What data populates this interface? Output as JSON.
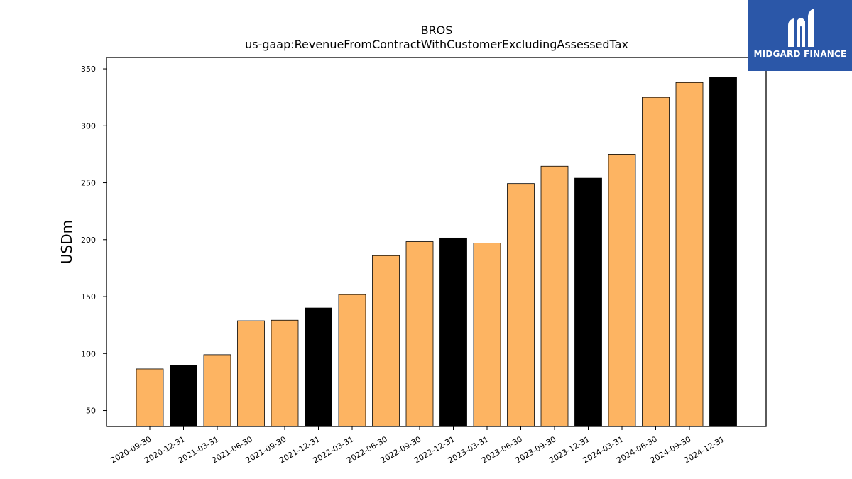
{
  "chart_data": {
    "type": "bar",
    "title": "BROS",
    "subtitle": "us-gaap:RevenueFromContractWithCustomerExcludingAssessedTax",
    "xlabel": "",
    "ylabel": "USDm",
    "ylim": [
      36,
      360
    ],
    "yticks": [
      50,
      100,
      150,
      200,
      250,
      300,
      350
    ],
    "grid": false,
    "categories": [
      "2020-09-30",
      "2020-12-31",
      "2021-03-31",
      "2021-06-30",
      "2021-09-30",
      "2021-12-31",
      "2022-03-31",
      "2022-06-30",
      "2022-09-30",
      "2022-12-31",
      "2023-03-31",
      "2023-06-30",
      "2023-09-30",
      "2023-12-31",
      "2024-03-31",
      "2024-06-30",
      "2024-09-30",
      "2024-12-31"
    ],
    "values": [
      86.5,
      89.5,
      99.0,
      128.8,
      129.3,
      140.0,
      151.8,
      186.0,
      198.3,
      201.5,
      197.0,
      249.3,
      264.5,
      254.0,
      275.0,
      325.0,
      338.0,
      342.3
    ],
    "bar_colors": [
      "#fdb462",
      "#000000",
      "#fdb462",
      "#fdb462",
      "#fdb462",
      "#000000",
      "#fdb462",
      "#fdb462",
      "#fdb462",
      "#000000",
      "#fdb462",
      "#fdb462",
      "#fdb462",
      "#000000",
      "#fdb462",
      "#fdb462",
      "#fdb462",
      "#000000"
    ]
  },
  "logo": {
    "text": "MIDGARD FINANCE",
    "background": "#2b57a8"
  }
}
